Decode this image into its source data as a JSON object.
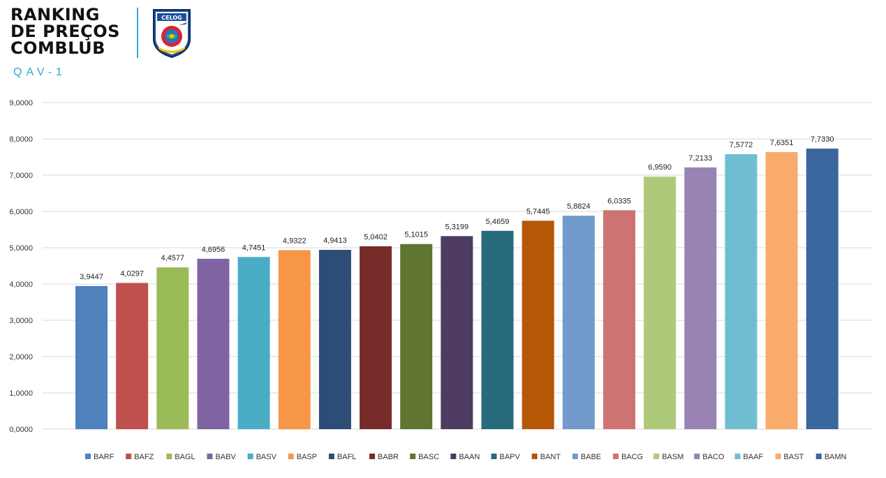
{
  "header": {
    "title_lines": [
      "RANKING",
      "DE PREÇOS",
      "COMBLUB"
    ],
    "logo_text": "CELOG",
    "subtitle": "QAV-1"
  },
  "chart_data": {
    "type": "bar",
    "title": "",
    "xlabel": "",
    "ylabel": "",
    "ylim": [
      0,
      9
    ],
    "yticks": [
      "0,0000",
      "1,0000",
      "2,0000",
      "3,0000",
      "4,0000",
      "5,0000",
      "6,0000",
      "7,0000",
      "8,0000",
      "9,0000"
    ],
    "grid": true,
    "legend_position": "bottom",
    "categories": [
      "BARF",
      "BAFZ",
      "BAGL",
      "BABV",
      "BASV",
      "BASP",
      "BAFL",
      "BABR",
      "BASC",
      "BAAN",
      "BAPV",
      "BANT",
      "BABE",
      "BACG",
      "BASM",
      "BACO",
      "BAAF",
      "BAST",
      "BAMN"
    ],
    "values": [
      3.9447,
      4.0297,
      4.4577,
      4.6956,
      4.7451,
      4.9322,
      4.9413,
      5.0402,
      5.1015,
      5.3199,
      5.4659,
      5.7445,
      5.8824,
      6.0335,
      6.959,
      7.2133,
      7.5772,
      7.6351,
      7.733
    ],
    "value_labels": [
      "3,9447",
      "4,0297",
      "4,4577",
      "4,6956",
      "4,7451",
      "4,9322",
      "4,9413",
      "5,0402",
      "5,1015",
      "5,3199",
      "5,4659",
      "5,7445",
      "5,8824",
      "6,0335",
      "6,9590",
      "7,2133",
      "7,5772",
      "7,6351",
      "7,7330"
    ],
    "colors": [
      "#4f81bd",
      "#c0504d",
      "#9bbb59",
      "#8064a2",
      "#4bacc6",
      "#f79646",
      "#2c4d75",
      "#772c2a",
      "#5f7530",
      "#4d3b62",
      "#276a7c",
      "#b65708",
      "#729aca",
      "#cd7371",
      "#afc97a",
      "#9983b5",
      "#6fbdd1",
      "#f9ab6b",
      "#3b679e"
    ]
  }
}
